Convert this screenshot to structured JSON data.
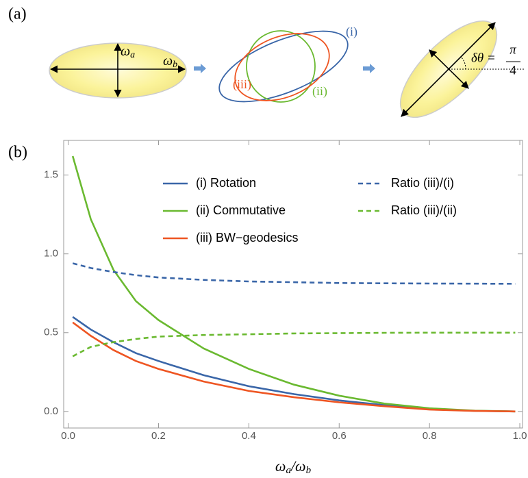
{
  "panel_labels": [
    "(a)",
    "(b)"
  ],
  "diagram": {
    "omega": "ω",
    "a": "a",
    "b": "b",
    "labels": [
      "(i)",
      "(ii)",
      "(iii)"
    ],
    "delta_theta": "δθ =",
    "pi": "π",
    "four": "4"
  },
  "chart_data": {
    "type": "line",
    "x_label": [
      "ω",
      "a",
      "/ω",
      "b"
    ],
    "x": [
      0.01,
      0.05,
      0.1,
      0.15,
      0.2,
      0.3,
      0.4,
      0.5,
      0.6,
      0.7,
      0.8,
      0.9,
      0.99
    ],
    "series": [
      {
        "name": "(i) Rotation",
        "color": "#3a66a8",
        "dashed": false,
        "values": [
          0.6,
          0.52,
          0.44,
          0.37,
          0.32,
          0.23,
          0.16,
          0.11,
          0.07,
          0.04,
          0.015,
          0.004,
          0
        ]
      },
      {
        "name": "(ii) Commutative",
        "color": "#6ab930",
        "dashed": false,
        "values": [
          1.62,
          1.22,
          0.9,
          0.7,
          0.58,
          0.4,
          0.27,
          0.17,
          0.1,
          0.05,
          0.02,
          0.005,
          0
        ]
      },
      {
        "name": "(iii) BW−geodesics",
        "color": "#ee5522",
        "dashed": false,
        "values": [
          0.565,
          0.48,
          0.39,
          0.32,
          0.27,
          0.19,
          0.13,
          0.09,
          0.058,
          0.033,
          0.012,
          0.003,
          0
        ]
      },
      {
        "name": "Ratio (iii)/(i)",
        "color": "#3a66a8",
        "dashed": true,
        "values": [
          0.94,
          0.91,
          0.885,
          0.865,
          0.85,
          0.835,
          0.825,
          0.82,
          0.815,
          0.813,
          0.812,
          0.811,
          0.81
        ]
      },
      {
        "name": "Ratio (iii)/(ii)",
        "color": "#6ab930",
        "dashed": true,
        "values": [
          0.35,
          0.41,
          0.44,
          0.46,
          0.475,
          0.485,
          0.49,
          0.495,
          0.497,
          0.499,
          0.5,
          0.5,
          0.5
        ]
      }
    ],
    "xlim": [
      -0.01,
      1.006
    ],
    "ylim": [
      -0.105,
      1.72
    ],
    "xticks": [
      {
        "value": 0,
        "label": "0.0"
      },
      0.2,
      0.4,
      0.6,
      0.8,
      {
        "value": 1,
        "label": "1.0"
      }
    ],
    "yticks": [
      {
        "value": 0,
        "label": "0.0"
      },
      0.5,
      {
        "value": 1,
        "label": "1.0"
      },
      1.5
    ]
  }
}
